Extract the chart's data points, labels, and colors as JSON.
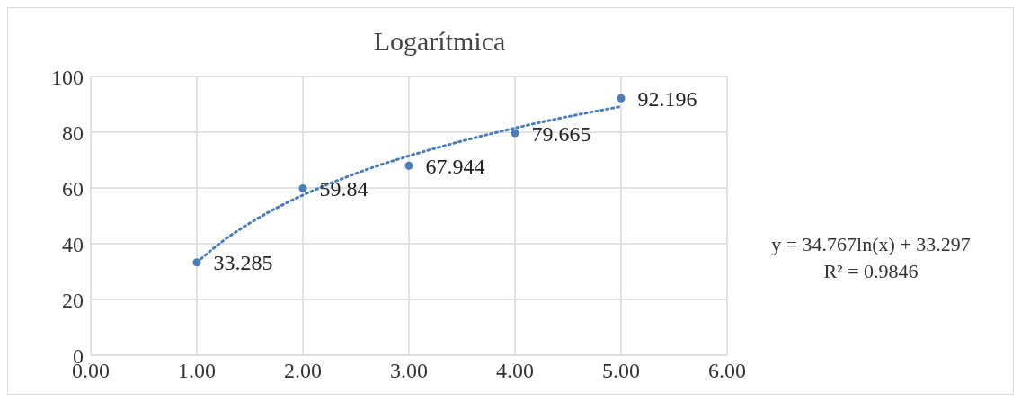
{
  "chart_data": {
    "type": "scatter",
    "title": "Logarítmica",
    "series": [
      {
        "color": "#4a7ebb",
        "marker": "circle",
        "x": [
          1,
          2,
          3,
          4,
          5
        ],
        "values": [
          33.285,
          59.84,
          67.944,
          79.665,
          92.196
        ],
        "value_labels": [
          "33.285",
          "59.84",
          "67.944",
          "79.665",
          "92.196"
        ]
      },
      {
        "type": "line",
        "color": "#4a7ebb",
        "line_style": "dotted",
        "marker": "none",
        "x": [
          1,
          1.25,
          1.5,
          1.75,
          2,
          2.5,
          3,
          3.5,
          4,
          4.5,
          5
        ],
        "values": [
          33.3,
          41.1,
          47.4,
          52.8,
          57.4,
          65.2,
          71.5,
          76.8,
          81.5,
          85.6,
          89.2
        ]
      }
    ],
    "grid": true,
    "xlim": [
      0,
      6
    ],
    "xticks": [
      {
        "value": 0,
        "label": "0.00"
      },
      {
        "value": 1,
        "label": "1.00"
      },
      {
        "value": 2,
        "label": "2.00"
      },
      {
        "value": 3,
        "label": "3.00"
      },
      {
        "value": 4,
        "label": "4.00"
      },
      {
        "value": 5,
        "label": "5.00"
      },
      {
        "value": 6,
        "label": "6.00"
      }
    ],
    "ylim": [
      0,
      100
    ],
    "yticks": [
      0,
      20,
      40,
      60,
      80,
      100
    ],
    "annotations": [
      "y = 34.767ln(x) + 33.297",
      "R² = 0.9846"
    ]
  }
}
